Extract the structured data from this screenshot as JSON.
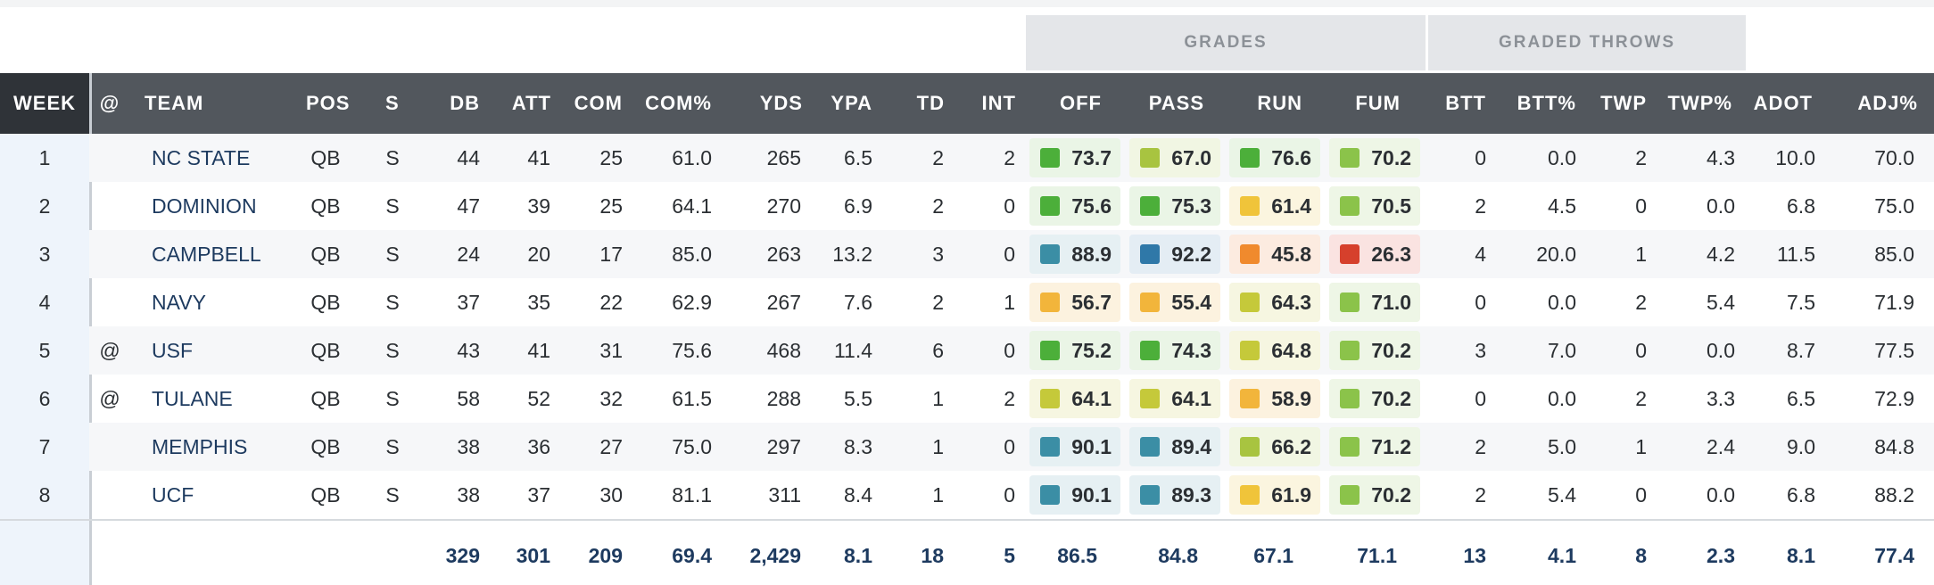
{
  "group_headers": {
    "grades": "GRADES",
    "graded_throws": "GRADED THROWS"
  },
  "columns": [
    "WEEK",
    "@",
    "TEAM",
    "POS",
    "S",
    "DB",
    "ATT",
    "COM",
    "COM%",
    "YDS",
    "YPA",
    "TD",
    "INT",
    "OFF",
    "PASS",
    "RUN",
    "FUM",
    "BTT",
    "BTT%",
    "TWP",
    "TWP%",
    "ADOT",
    "ADJ%"
  ],
  "grade_colors": {
    "dark_green": "#4caf3a",
    "green": "#8bc34a",
    "light_green": "#a8c440",
    "yellow_green": "#c5c93a",
    "yellow": "#f0c43a",
    "amber": "#f2b53b",
    "orange": "#f08a2d",
    "red": "#d6402c",
    "teal": "#3b8ea5",
    "blue": "#2f78a8"
  },
  "rows": [
    {
      "week": "1",
      "at": "",
      "team": "NC STATE",
      "pos": "QB",
      "s": "S",
      "db": "44",
      "att": "41",
      "com": "25",
      "comp_pct": "61.0",
      "yds": "265",
      "ypa": "6.5",
      "td": "2",
      "int": "2",
      "off": "73.7",
      "off_color": "dark_green",
      "pass": "67.0",
      "pass_color": "light_green",
      "run": "76.6",
      "run_color": "dark_green",
      "fum": "70.2",
      "fum_color": "green",
      "btt": "0",
      "btt_pct": "0.0",
      "twp": "2",
      "twp_pct": "4.3",
      "adot": "10.0",
      "adj_pct": "70.0"
    },
    {
      "week": "2",
      "at": "",
      "team": "DOMINION",
      "pos": "QB",
      "s": "S",
      "db": "47",
      "att": "39",
      "com": "25",
      "comp_pct": "64.1",
      "yds": "270",
      "ypa": "6.9",
      "td": "2",
      "int": "0",
      "off": "75.6",
      "off_color": "dark_green",
      "pass": "75.3",
      "pass_color": "dark_green",
      "run": "61.4",
      "run_color": "yellow",
      "fum": "70.5",
      "fum_color": "green",
      "btt": "2",
      "btt_pct": "4.5",
      "twp": "0",
      "twp_pct": "0.0",
      "adot": "6.8",
      "adj_pct": "75.0"
    },
    {
      "week": "3",
      "at": "",
      "team": "CAMPBELL",
      "pos": "QB",
      "s": "S",
      "db": "24",
      "att": "20",
      "com": "17",
      "comp_pct": "85.0",
      "yds": "263",
      "ypa": "13.2",
      "td": "3",
      "int": "0",
      "off": "88.9",
      "off_color": "teal",
      "pass": "92.2",
      "pass_color": "blue",
      "run": "45.8",
      "run_color": "orange",
      "fum": "26.3",
      "fum_color": "red",
      "btt": "4",
      "btt_pct": "20.0",
      "twp": "1",
      "twp_pct": "4.2",
      "adot": "11.5",
      "adj_pct": "85.0"
    },
    {
      "week": "4",
      "at": "",
      "team": "NAVY",
      "pos": "QB",
      "s": "S",
      "db": "37",
      "att": "35",
      "com": "22",
      "comp_pct": "62.9",
      "yds": "267",
      "ypa": "7.6",
      "td": "2",
      "int": "1",
      "off": "56.7",
      "off_color": "amber",
      "pass": "55.4",
      "pass_color": "amber",
      "run": "64.3",
      "run_color": "yellow_green",
      "fum": "71.0",
      "fum_color": "green",
      "btt": "0",
      "btt_pct": "0.0",
      "twp": "2",
      "twp_pct": "5.4",
      "adot": "7.5",
      "adj_pct": "71.9"
    },
    {
      "week": "5",
      "at": "@",
      "team": "USF",
      "pos": "QB",
      "s": "S",
      "db": "43",
      "att": "41",
      "com": "31",
      "comp_pct": "75.6",
      "yds": "468",
      "ypa": "11.4",
      "td": "6",
      "int": "0",
      "off": "75.2",
      "off_color": "dark_green",
      "pass": "74.3",
      "pass_color": "dark_green",
      "run": "64.8",
      "run_color": "yellow_green",
      "fum": "70.2",
      "fum_color": "green",
      "btt": "3",
      "btt_pct": "7.0",
      "twp": "0",
      "twp_pct": "0.0",
      "adot": "8.7",
      "adj_pct": "77.5"
    },
    {
      "week": "6",
      "at": "@",
      "team": "TULANE",
      "pos": "QB",
      "s": "S",
      "db": "58",
      "att": "52",
      "com": "32",
      "comp_pct": "61.5",
      "yds": "288",
      "ypa": "5.5",
      "td": "1",
      "int": "2",
      "off": "64.1",
      "off_color": "yellow_green",
      "pass": "64.1",
      "pass_color": "yellow_green",
      "run": "58.9",
      "run_color": "amber",
      "fum": "70.2",
      "fum_color": "green",
      "btt": "0",
      "btt_pct": "0.0",
      "twp": "2",
      "twp_pct": "3.3",
      "adot": "6.5",
      "adj_pct": "72.9"
    },
    {
      "week": "7",
      "at": "",
      "team": "MEMPHIS",
      "pos": "QB",
      "s": "S",
      "db": "38",
      "att": "36",
      "com": "27",
      "comp_pct": "75.0",
      "yds": "297",
      "ypa": "8.3",
      "td": "1",
      "int": "0",
      "off": "90.1",
      "off_color": "teal",
      "pass": "89.4",
      "pass_color": "teal",
      "run": "66.2",
      "run_color": "light_green",
      "fum": "71.2",
      "fum_color": "green",
      "btt": "2",
      "btt_pct": "5.0",
      "twp": "1",
      "twp_pct": "2.4",
      "adot": "9.0",
      "adj_pct": "84.8"
    },
    {
      "week": "8",
      "at": "",
      "team": "UCF",
      "pos": "QB",
      "s": "S",
      "db": "38",
      "att": "37",
      "com": "30",
      "comp_pct": "81.1",
      "yds": "311",
      "ypa": "8.4",
      "td": "1",
      "int": "0",
      "off": "90.1",
      "off_color": "teal",
      "pass": "89.3",
      "pass_color": "teal",
      "run": "61.9",
      "run_color": "yellow",
      "fum": "70.2",
      "fum_color": "green",
      "btt": "2",
      "btt_pct": "5.4",
      "twp": "0",
      "twp_pct": "0.0",
      "adot": "6.8",
      "adj_pct": "88.2"
    }
  ],
  "totals": {
    "db": "329",
    "att": "301",
    "com": "209",
    "comp_pct": "69.4",
    "yds": "2,429",
    "ypa": "8.1",
    "td": "18",
    "int": "5",
    "off": "86.5",
    "pass": "84.8",
    "run": "67.1",
    "fum": "71.1",
    "btt": "13",
    "btt_pct": "4.1",
    "twp": "8",
    "twp_pct": "2.3",
    "adot": "8.1",
    "adj_pct": "77.4"
  }
}
